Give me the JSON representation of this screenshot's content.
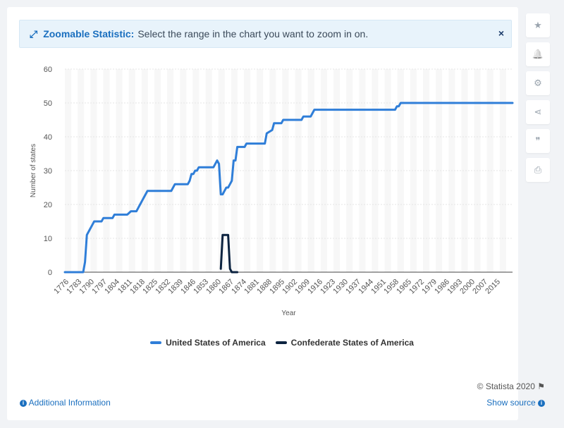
{
  "banner": {
    "label": "Zoomable Statistic:",
    "text": "Select the range in the chart you want to zoom in on.",
    "close": "×"
  },
  "sidebar": {
    "buttons": [
      {
        "icon": "star-icon",
        "glyph": "★"
      },
      {
        "icon": "bell-icon",
        "glyph": "🔔"
      },
      {
        "icon": "gear-icon",
        "glyph": "⚙"
      },
      {
        "icon": "share-icon",
        "glyph": "⋖"
      },
      {
        "icon": "quote-icon",
        "glyph": "❞"
      },
      {
        "icon": "print-icon",
        "glyph": "⎙"
      }
    ]
  },
  "footer": {
    "credit": "© Statista 2020",
    "additional_info": "Additional Information",
    "show_source": "Show source"
  },
  "colors": {
    "usa": "#2f7ed8",
    "csa": "#0c2340",
    "grid": "#e6e6e6",
    "band": "#f7f7f7"
  },
  "chart_data": {
    "type": "line",
    "title": "",
    "xlabel": "Year",
    "ylabel": "Number of states",
    "ylim": [
      0,
      60
    ],
    "yticks": [
      0,
      10,
      20,
      30,
      40,
      50,
      60
    ],
    "xlim": [
      1776,
      2020
    ],
    "xticks": [
      "1776",
      "1783",
      "1790",
      "1797",
      "1804",
      "1811",
      "1818",
      "1825",
      "1832",
      "1839",
      "1846",
      "1853",
      "1860",
      "1867",
      "1874",
      "1881",
      "1888",
      "1895",
      "1902",
      "1909",
      "1916",
      "1923",
      "1930",
      "1937",
      "1944",
      "1951",
      "1958",
      "1965",
      "1972",
      "1979",
      "1986",
      "1993",
      "2000",
      "2007",
      "2015"
    ],
    "legend_position": "bottom",
    "series": [
      {
        "name": "United States of America",
        "x": [
          1776,
          1786,
          1787,
          1788,
          1789,
          1790,
          1791,
          1792,
          1794,
          1796,
          1797,
          1802,
          1803,
          1810,
          1812,
          1815,
          1816,
          1817,
          1818,
          1819,
          1820,
          1821,
          1834,
          1835,
          1836,
          1837,
          1843,
          1844,
          1845,
          1846,
          1847,
          1848,
          1849,
          1850,
          1857,
          1858,
          1859,
          1860,
          1861,
          1862,
          1863,
          1864,
          1865,
          1866,
          1867,
          1868,
          1869,
          1870,
          1873,
          1874,
          1875,
          1885,
          1886,
          1889,
          1890,
          1891,
          1894,
          1895,
          1896,
          1905,
          1906,
          1910,
          1911,
          1912,
          1955,
          1956,
          1957,
          1958,
          1959,
          2020
        ],
        "values": [
          0,
          0,
          3,
          11,
          12,
          13,
          14,
          15,
          15,
          15,
          16,
          16,
          17,
          17,
          18,
          18,
          19,
          20,
          21,
          22,
          23,
          24,
          24,
          25,
          26,
          26,
          26,
          27,
          29,
          29,
          30,
          30,
          31,
          31,
          31,
          32,
          33,
          32,
          23,
          23,
          24,
          25,
          25,
          26,
          27,
          33,
          33,
          37,
          37,
          37,
          38,
          38,
          41,
          42,
          44,
          44,
          44,
          45,
          45,
          45,
          46,
          46,
          47,
          48,
          48,
          48,
          49,
          49,
          50,
          50
        ]
      },
      {
        "name": "Confederate States of America",
        "x": [
          1861,
          1862,
          1865,
          1866,
          1867,
          1868,
          1870
        ],
        "values": [
          1,
          11,
          11,
          1,
          0,
          0,
          0
        ]
      }
    ]
  }
}
